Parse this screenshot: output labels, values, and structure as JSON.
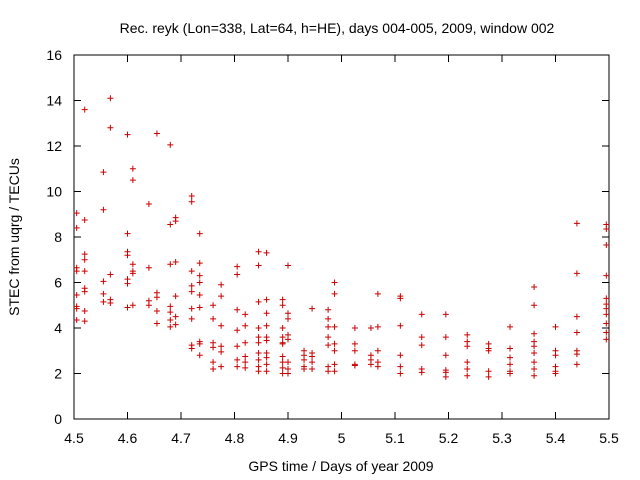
{
  "chart_data": {
    "type": "scatter",
    "title": "Rec. reyk (Lon=338, Lat=64, h=HE), days 004-005, 2009, window 002",
    "xlabel": "GPS time / Days of year 2009",
    "ylabel": "STEC from uqrg / TECUs",
    "xlim": [
      4.5,
      5.5
    ],
    "ylim": [
      0,
      16
    ],
    "x_ticks": [
      "4.5",
      "4.6",
      "4.7",
      "4.8",
      "4.9",
      "5",
      "5.1",
      "5.2",
      "5.3",
      "5.4",
      "5.5"
    ],
    "y_ticks": [
      "0",
      "2",
      "4",
      "6",
      "8",
      "10",
      "12",
      "14",
      "16"
    ],
    "grid": false,
    "marker": "plus",
    "color": "#cc0000",
    "series": [
      {
        "name": "STEC",
        "points": [
          [
            4.505,
            9.05
          ],
          [
            4.505,
            8.4
          ],
          [
            4.505,
            6.65
          ],
          [
            4.505,
            6.5
          ],
          [
            4.505,
            5.45
          ],
          [
            4.505,
            4.95
          ],
          [
            4.505,
            4.85
          ],
          [
            4.505,
            4.35
          ],
          [
            4.52,
            13.6
          ],
          [
            4.52,
            8.75
          ],
          [
            4.52,
            7.25
          ],
          [
            4.52,
            7.0
          ],
          [
            4.52,
            6.5
          ],
          [
            4.52,
            5.75
          ],
          [
            4.52,
            5.6
          ],
          [
            4.52,
            4.75
          ],
          [
            4.52,
            4.3
          ],
          [
            4.555,
            10.85
          ],
          [
            4.555,
            9.2
          ],
          [
            4.555,
            6.05
          ],
          [
            4.555,
            5.5
          ],
          [
            4.555,
            5.15
          ],
          [
            4.568,
            14.1
          ],
          [
            4.568,
            12.8
          ],
          [
            4.568,
            6.35
          ],
          [
            4.568,
            5.25
          ],
          [
            4.568,
            5.1
          ],
          [
            4.6,
            12.5
          ],
          [
            4.6,
            8.15
          ],
          [
            4.6,
            7.35
          ],
          [
            4.6,
            7.2
          ],
          [
            4.6,
            6.15
          ],
          [
            4.6,
            5.95
          ],
          [
            4.6,
            4.9
          ],
          [
            4.61,
            11.0
          ],
          [
            4.61,
            10.5
          ],
          [
            4.61,
            6.8
          ],
          [
            4.61,
            6.5
          ],
          [
            4.61,
            6.4
          ],
          [
            4.61,
            5.0
          ],
          [
            4.64,
            9.45
          ],
          [
            4.64,
            6.65
          ],
          [
            4.64,
            5.2
          ],
          [
            4.64,
            5.0
          ],
          [
            4.655,
            12.55
          ],
          [
            4.655,
            5.55
          ],
          [
            4.655,
            5.35
          ],
          [
            4.655,
            4.75
          ],
          [
            4.655,
            4.2
          ],
          [
            4.68,
            12.05
          ],
          [
            4.68,
            8.55
          ],
          [
            4.68,
            6.8
          ],
          [
            4.68,
            4.95
          ],
          [
            4.68,
            4.7
          ],
          [
            4.68,
            4.35
          ],
          [
            4.68,
            4.05
          ],
          [
            4.69,
            8.85
          ],
          [
            4.69,
            8.7
          ],
          [
            4.69,
            6.9
          ],
          [
            4.69,
            5.4
          ],
          [
            4.69,
            4.5
          ],
          [
            4.69,
            4.15
          ],
          [
            4.72,
            9.8
          ],
          [
            4.72,
            9.55
          ],
          [
            4.72,
            6.5
          ],
          [
            4.72,
            5.85
          ],
          [
            4.72,
            5.6
          ],
          [
            4.72,
            4.85
          ],
          [
            4.72,
            4.4
          ],
          [
            4.72,
            3.25
          ],
          [
            4.72,
            3.1
          ],
          [
            4.735,
            8.15
          ],
          [
            4.735,
            6.85
          ],
          [
            4.735,
            6.3
          ],
          [
            4.735,
            6.0
          ],
          [
            4.735,
            5.45
          ],
          [
            4.735,
            4.9
          ],
          [
            4.735,
            3.4
          ],
          [
            4.735,
            3.3
          ],
          [
            4.735,
            2.8
          ],
          [
            4.76,
            5.0
          ],
          [
            4.76,
            4.4
          ],
          [
            4.76,
            3.35
          ],
          [
            4.76,
            3.15
          ],
          [
            4.76,
            2.5
          ],
          [
            4.76,
            2.2
          ],
          [
            4.775,
            5.9
          ],
          [
            4.775,
            5.4
          ],
          [
            4.775,
            4.1
          ],
          [
            4.775,
            3.2
          ],
          [
            4.775,
            2.95
          ],
          [
            4.775,
            2.3
          ],
          [
            4.805,
            6.7
          ],
          [
            4.805,
            6.35
          ],
          [
            4.805,
            4.8
          ],
          [
            4.805,
            3.9
          ],
          [
            4.805,
            3.2
          ],
          [
            4.805,
            2.6
          ],
          [
            4.805,
            2.3
          ],
          [
            4.82,
            4.6
          ],
          [
            4.82,
            4.1
          ],
          [
            4.82,
            3.35
          ],
          [
            4.82,
            2.75
          ],
          [
            4.82,
            2.5
          ],
          [
            4.82,
            2.25
          ],
          [
            4.845,
            7.35
          ],
          [
            4.845,
            6.75
          ],
          [
            4.845,
            5.15
          ],
          [
            4.845,
            4.0
          ],
          [
            4.845,
            3.6
          ],
          [
            4.845,
            3.35
          ],
          [
            4.845,
            2.9
          ],
          [
            4.845,
            2.6
          ],
          [
            4.845,
            2.3
          ],
          [
            4.845,
            2.1
          ],
          [
            4.86,
            7.3
          ],
          [
            4.86,
            5.25
          ],
          [
            4.86,
            4.65
          ],
          [
            4.86,
            4.1
          ],
          [
            4.86,
            3.6
          ],
          [
            4.86,
            3.45
          ],
          [
            4.86,
            2.9
          ],
          [
            4.86,
            2.7
          ],
          [
            4.86,
            2.4
          ],
          [
            4.86,
            2.1
          ],
          [
            4.89,
            5.25
          ],
          [
            4.89,
            5.0
          ],
          [
            4.89,
            4.0
          ],
          [
            4.89,
            3.6
          ],
          [
            4.89,
            3.35
          ],
          [
            4.89,
            3.3
          ],
          [
            4.89,
            2.75
          ],
          [
            4.89,
            2.5
          ],
          [
            4.89,
            2.25
          ],
          [
            4.89,
            2.0
          ],
          [
            4.9,
            6.75
          ],
          [
            4.9,
            4.65
          ],
          [
            4.9,
            4.4
          ],
          [
            4.9,
            3.7
          ],
          [
            4.9,
            3.5
          ],
          [
            4.9,
            2.5
          ],
          [
            4.9,
            2.2
          ],
          [
            4.9,
            2.0
          ],
          [
            4.93,
            3.0
          ],
          [
            4.93,
            2.8
          ],
          [
            4.93,
            2.6
          ],
          [
            4.93,
            2.3
          ],
          [
            4.93,
            2.2
          ],
          [
            4.945,
            4.85
          ],
          [
            4.945,
            2.9
          ],
          [
            4.945,
            2.75
          ],
          [
            4.945,
            2.5
          ],
          [
            4.945,
            2.2
          ],
          [
            4.975,
            4.8
          ],
          [
            4.975,
            4.4
          ],
          [
            4.975,
            4.05
          ],
          [
            4.975,
            3.6
          ],
          [
            4.975,
            3.25
          ],
          [
            4.975,
            2.3
          ],
          [
            4.975,
            2.1
          ],
          [
            4.987,
            6.0
          ],
          [
            4.987,
            5.5
          ],
          [
            4.987,
            4.05
          ],
          [
            4.987,
            3.3
          ],
          [
            4.987,
            3.0
          ],
          [
            4.987,
            2.4
          ],
          [
            4.987,
            2.1
          ],
          [
            5.025,
            4.0
          ],
          [
            5.025,
            3.3
          ],
          [
            5.025,
            3.0
          ],
          [
            5.025,
            2.4
          ],
          [
            5.025,
            2.35
          ],
          [
            5.055,
            4.0
          ],
          [
            5.055,
            2.8
          ],
          [
            5.055,
            2.6
          ],
          [
            5.055,
            2.4
          ],
          [
            5.068,
            5.5
          ],
          [
            5.068,
            4.05
          ],
          [
            5.068,
            3.0
          ],
          [
            5.068,
            2.5
          ],
          [
            5.068,
            2.3
          ],
          [
            5.11,
            5.4
          ],
          [
            5.11,
            5.3
          ],
          [
            5.11,
            4.1
          ],
          [
            5.11,
            2.8
          ],
          [
            5.11,
            2.3
          ],
          [
            5.11,
            2.0
          ],
          [
            5.15,
            4.6
          ],
          [
            5.15,
            3.6
          ],
          [
            5.15,
            3.25
          ],
          [
            5.15,
            2.2
          ],
          [
            5.15,
            2.05
          ],
          [
            5.195,
            4.6
          ],
          [
            5.195,
            3.6
          ],
          [
            5.195,
            2.8
          ],
          [
            5.195,
            2.15
          ],
          [
            5.195,
            2.05
          ],
          [
            5.195,
            1.85
          ],
          [
            5.235,
            3.7
          ],
          [
            5.235,
            3.4
          ],
          [
            5.235,
            3.2
          ],
          [
            5.235,
            2.5
          ],
          [
            5.235,
            2.2
          ],
          [
            5.235,
            1.9
          ],
          [
            5.275,
            3.3
          ],
          [
            5.275,
            3.1
          ],
          [
            5.275,
            3.0
          ],
          [
            5.275,
            2.1
          ],
          [
            5.275,
            1.85
          ],
          [
            5.315,
            4.05
          ],
          [
            5.315,
            3.1
          ],
          [
            5.315,
            2.7
          ],
          [
            5.315,
            2.4
          ],
          [
            5.315,
            2.1
          ],
          [
            5.315,
            2.0
          ],
          [
            5.36,
            5.8
          ],
          [
            5.36,
            5.0
          ],
          [
            5.36,
            3.75
          ],
          [
            5.36,
            3.4
          ],
          [
            5.36,
            3.2
          ],
          [
            5.36,
            2.9
          ],
          [
            5.36,
            2.5
          ],
          [
            5.36,
            2.2
          ],
          [
            5.36,
            1.9
          ],
          [
            5.4,
            4.05
          ],
          [
            5.4,
            3.0
          ],
          [
            5.4,
            2.8
          ],
          [
            5.4,
            2.3
          ],
          [
            5.4,
            2.1
          ],
          [
            5.4,
            2.0
          ],
          [
            5.44,
            8.6
          ],
          [
            5.44,
            6.4
          ],
          [
            5.44,
            4.5
          ],
          [
            5.44,
            3.8
          ],
          [
            5.44,
            3.0
          ],
          [
            5.44,
            2.85
          ],
          [
            5.44,
            2.4
          ],
          [
            5.495,
            8.55
          ],
          [
            5.495,
            8.35
          ],
          [
            5.495,
            7.65
          ],
          [
            5.495,
            6.3
          ],
          [
            5.495,
            5.3
          ],
          [
            5.495,
            5.05
          ],
          [
            5.495,
            4.85
          ],
          [
            5.495,
            4.6
          ],
          [
            5.495,
            4.2
          ],
          [
            5.495,
            3.8
          ],
          [
            5.495,
            3.5
          ]
        ]
      }
    ]
  }
}
